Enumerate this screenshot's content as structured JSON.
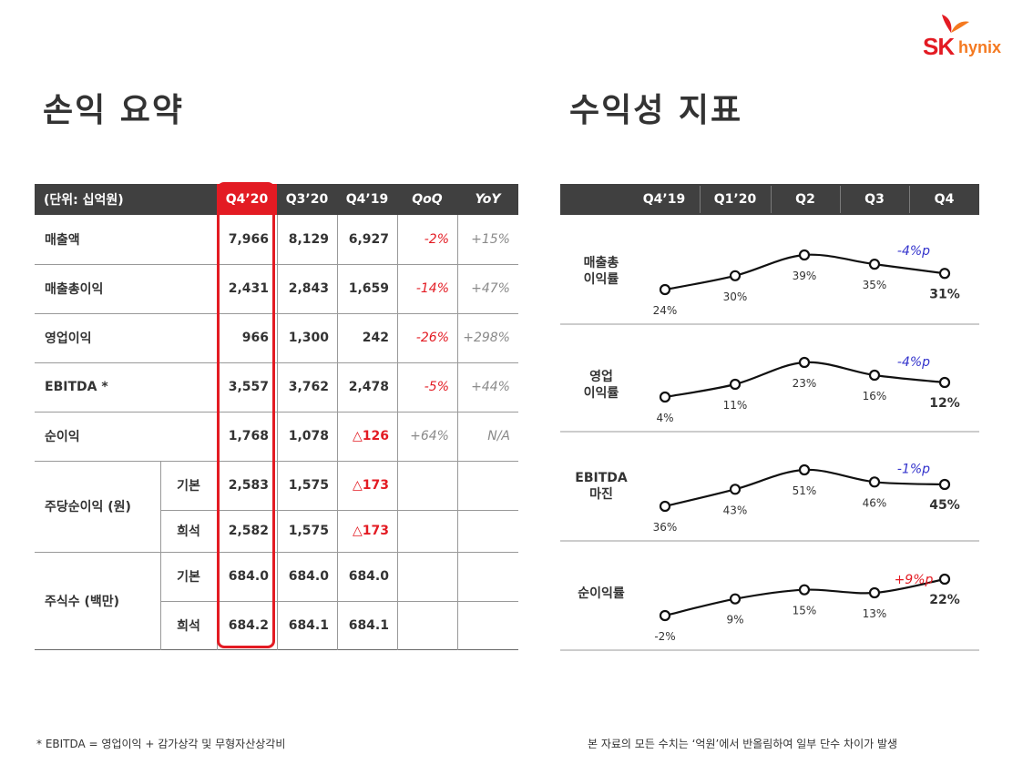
{
  "brand": {
    "sk": "SK",
    "hynix": "hynix"
  },
  "titles": {
    "left": "손익 요약",
    "right": "수익성 지표"
  },
  "table": {
    "header": [
      "(단위: 십억원)",
      "Q4’20",
      "Q3’20",
      "Q4’19",
      "QoQ",
      "YoY"
    ],
    "rows": [
      {
        "label": "매출액",
        "v": [
          "7,966",
          "8,129",
          "6,927",
          "-2%",
          "+15%"
        ]
      },
      {
        "label": "매출총이익",
        "v": [
          "2,431",
          "2,843",
          "1,659",
          "-14%",
          "+47%"
        ]
      },
      {
        "label": "영업이익",
        "v": [
          "966",
          "1,300",
          "242",
          "-26%",
          "+298%"
        ]
      },
      {
        "label": "EBITDA *",
        "v": [
          "3,557",
          "3,762",
          "2,478",
          "-5%",
          "+44%"
        ]
      },
      {
        "label": "순이익",
        "v": [
          "1,768",
          "1,078",
          "△126",
          "+64%",
          "N/A"
        ]
      }
    ],
    "eps": {
      "label": "주당순이익 (원)",
      "basic": "기본",
      "diluted": "희석",
      "basic_v": [
        "2,583",
        "1,575",
        "△173"
      ],
      "diluted_v": [
        "2,582",
        "1,575",
        "△173"
      ]
    },
    "shares": {
      "label": "주식수 (백만)",
      "basic": "기본",
      "diluted": "희석",
      "basic_v": [
        "684.0",
        "684.0",
        "684.0"
      ],
      "diluted_v": [
        "684.2",
        "684.1",
        "684.1"
      ]
    }
  },
  "chart_data": {
    "type": "line",
    "categories": [
      "Q4’19",
      "Q1’20",
      "Q2",
      "Q3",
      "Q4"
    ],
    "series": [
      {
        "name": "매출총 이익률",
        "label_lines": [
          "매출총",
          "이익률"
        ],
        "values": [
          24,
          30,
          39,
          35,
          31
        ],
        "labels": [
          "24%",
          "30%",
          "39%",
          "35%",
          "31%"
        ],
        "change": "-4%p"
      },
      {
        "name": "영업 이익률",
        "label_lines": [
          "영업",
          "이익률"
        ],
        "values": [
          4,
          11,
          23,
          16,
          12
        ],
        "labels": [
          "4%",
          "11%",
          "23%",
          "16%",
          "12%"
        ],
        "change": "-4%p"
      },
      {
        "name": "EBITDA 마진",
        "label_lines": [
          "EBITDA",
          "마진"
        ],
        "values": [
          36,
          43,
          51,
          46,
          45
        ],
        "labels": [
          "36%",
          "43%",
          "51%",
          "46%",
          "45%"
        ],
        "change": "-1%p"
      },
      {
        "name": "순이익률",
        "label_lines": [
          "순이익률"
        ],
        "values": [
          -2,
          9,
          15,
          13,
          22
        ],
        "labels": [
          "-2%",
          "9%",
          "15%",
          "13%",
          "22%"
        ],
        "change": "+9%p"
      }
    ]
  },
  "footnotes": {
    "left": "* EBITDA = 영업이익 + 감가상각 및 무형자산상각비",
    "right": "본 자료의 모든 수치는 ‘억원’에서 반올림하여 일부 단수 차이가 발생"
  },
  "colors": {
    "red": "#e31b23",
    "blue": "#3333cc",
    "header": "#404040"
  }
}
